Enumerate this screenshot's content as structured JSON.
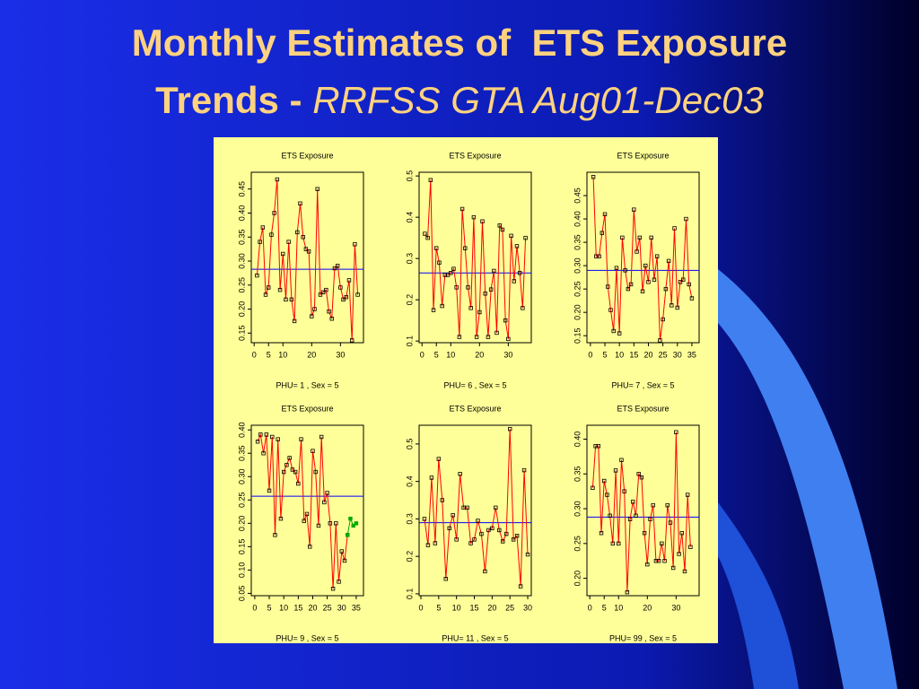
{
  "slide": {
    "title_line1": "Monthly Estimates of  ETS Exposure",
    "title_line2_bold": "Trends - ",
    "title_line2_italic": "RRFSS GTA Aug01-Dec03"
  },
  "chart_data": [
    {
      "type": "line",
      "title": "ETS Exposure",
      "x_label": "PHU= 1 , Sex = 5",
      "x": [
        1,
        2,
        3,
        4,
        5,
        6,
        7,
        8,
        9,
        10,
        11,
        12,
        13,
        14,
        15,
        16,
        17,
        18,
        19,
        20,
        21,
        22,
        23,
        24,
        25,
        26,
        27,
        28,
        29,
        30,
        31,
        32,
        33,
        34,
        35,
        36
      ],
      "series": [
        {
          "color": "#ff0000",
          "values": [
            0.27,
            0.34,
            0.37,
            0.23,
            0.245,
            0.355,
            0.4,
            0.47,
            0.24,
            0.315,
            0.22,
            0.34,
            0.22,
            0.175,
            0.36,
            0.42,
            0.35,
            0.325,
            0.32,
            0.185,
            0.2,
            0.45,
            0.23,
            0.235,
            0.24,
            0.195,
            0.18,
            0.285,
            0.29,
            0.245,
            0.22,
            0.225,
            0.26,
            0.135,
            0.335,
            0.23
          ]
        }
      ],
      "reference_line": {
        "value": 0.283,
        "color": "#0000ff"
      },
      "xlim": [
        -1,
        38
      ],
      "xticks": [
        0,
        5,
        10,
        20,
        30
      ],
      "ylim": [
        0.13,
        0.485
      ],
      "yticks": [
        0.15,
        {
          "value": 0.2,
          "label": "0.20"
        },
        0.25,
        {
          "value": 0.3,
          "label": "0.30"
        },
        0.35,
        {
          "value": 0.4,
          "label": "0.40"
        },
        0.45
      ]
    },
    {
      "type": "line",
      "title": "ETS Exposure",
      "x_label": "PHU= 6 , Sex = 5",
      "x": [
        1,
        2,
        3,
        4,
        5,
        6,
        7,
        8,
        9,
        10,
        11,
        12,
        13,
        14,
        15,
        16,
        17,
        18,
        19,
        20,
        21,
        22,
        23,
        24,
        25,
        26,
        27,
        28,
        29,
        30,
        31,
        32,
        33,
        34,
        35,
        36
      ],
      "series": [
        {
          "color": "#ff0000",
          "values": [
            0.36,
            0.35,
            0.49,
            0.175,
            0.325,
            0.29,
            0.185,
            0.26,
            0.26,
            0.265,
            0.275,
            0.23,
            0.11,
            0.42,
            0.325,
            0.23,
            0.18,
            0.4,
            0.11,
            0.17,
            0.39,
            0.215,
            0.11,
            0.225,
            0.27,
            0.12,
            0.38,
            0.37,
            0.15,
            0.105,
            0.355,
            0.245,
            0.33,
            0.265,
            0.18,
            0.35
          ]
        }
      ],
      "reference_line": {
        "value": 0.265,
        "color": "#0000ff"
      },
      "xlim": [
        -1,
        38
      ],
      "xticks": [
        0,
        5,
        10,
        20,
        30
      ],
      "ylim": [
        0.096,
        0.509
      ],
      "yticks": [
        0.1,
        0.2,
        0.3,
        0.4,
        0.5
      ]
    },
    {
      "type": "line",
      "title": "ETS Exposure",
      "x_label": "PHU= 7 , Sex = 5",
      "x": [
        1,
        2,
        3,
        4,
        5,
        6,
        7,
        8,
        9,
        10,
        11,
        12,
        13,
        14,
        15,
        16,
        17,
        18,
        19,
        20,
        21,
        22,
        23,
        24,
        25,
        26,
        27,
        28,
        29,
        30,
        31,
        32,
        33,
        34,
        35
      ],
      "series": [
        {
          "color": "#ff0000",
          "values": [
            0.49,
            0.32,
            0.32,
            0.37,
            0.41,
            0.255,
            0.205,
            0.16,
            0.295,
            0.155,
            0.36,
            0.29,
            0.25,
            0.26,
            0.42,
            0.33,
            0.36,
            0.245,
            0.3,
            0.265,
            0.36,
            0.27,
            0.32,
            0.14,
            0.185,
            0.25,
            0.31,
            0.215,
            0.38,
            0.21,
            0.265,
            0.27,
            0.4,
            0.26,
            0.23
          ]
        }
      ],
      "reference_line": {
        "value": 0.29,
        "color": "#0000ff"
      },
      "xlim": [
        -1.2,
        37.5
      ],
      "xticks": [
        0,
        5,
        10,
        15,
        20,
        25,
        30,
        35
      ],
      "ylim": [
        0.135,
        0.5
      ],
      "yticks": [
        0.15,
        {
          "value": 0.2,
          "label": "0.20"
        },
        0.25,
        {
          "value": 0.3,
          "label": "0.30"
        },
        0.35,
        {
          "value": 0.4,
          "label": "0.40"
        },
        0.45
      ]
    },
    {
      "type": "line",
      "title": "ETS Exposure",
      "x_label": "PHU= 9 , Sex = 5",
      "x": [
        1,
        2,
        3,
        4,
        5,
        6,
        7,
        8,
        9,
        10,
        11,
        12,
        13,
        14,
        15,
        16,
        17,
        18,
        19,
        20,
        21,
        22,
        23,
        24,
        25,
        26,
        27,
        28,
        29,
        30,
        31,
        32,
        33,
        34,
        35
      ],
      "series": [
        {
          "color": "#ff0000",
          "values": [
            0.375,
            0.39,
            0.35,
            0.39,
            0.27,
            0.385,
            0.175,
            0.38,
            0.21,
            0.31,
            0.325,
            0.34,
            0.315,
            0.31,
            0.285,
            0.38,
            0.205,
            0.22,
            0.15,
            0.355,
            0.31,
            0.195,
            0.385,
            0.245,
            0.265,
            0.2,
            0.06,
            0.2,
            0.075,
            0.14,
            0.12,
            0.175,
            null,
            null,
            null
          ]
        },
        {
          "color": "#00aa00",
          "values": [
            null,
            null,
            null,
            null,
            null,
            null,
            null,
            null,
            null,
            null,
            null,
            null,
            null,
            null,
            null,
            null,
            null,
            null,
            null,
            null,
            null,
            null,
            null,
            null,
            null,
            null,
            null,
            null,
            null,
            null,
            null,
            0.175,
            0.21,
            0.195,
            0.2
          ]
        }
      ],
      "reference_line": {
        "value": 0.258,
        "color": "#0000ff"
      },
      "xlim": [
        -1.2,
        37.5
      ],
      "xticks": [
        0,
        5,
        10,
        15,
        20,
        25,
        30,
        35
      ],
      "ylim": [
        0.045,
        0.41
      ],
      "yticks": [
        0.05,
        {
          "value": 0.1,
          "label": "0.10"
        },
        0.15,
        {
          "value": 0.2,
          "label": "0.20"
        },
        0.25,
        {
          "value": 0.3,
          "label": "0.30"
        },
        0.35,
        {
          "value": 0.4,
          "label": "0.40"
        }
      ]
    },
    {
      "type": "line",
      "title": "ETS Exposure",
      "x_label": "PHU= 11 , Sex = 5",
      "x": [
        1,
        2,
        3,
        4,
        5,
        6,
        7,
        8,
        9,
        10,
        11,
        12,
        13,
        14,
        15,
        16,
        17,
        18,
        19,
        20,
        21,
        22,
        23,
        24,
        25,
        26,
        27,
        28,
        29,
        30
      ],
      "series": [
        {
          "color": "#ff0000",
          "values": [
            0.3,
            0.23,
            0.41,
            0.235,
            0.46,
            0.35,
            0.14,
            0.275,
            0.31,
            0.245,
            0.42,
            0.33,
            0.33,
            0.235,
            0.245,
            0.295,
            0.26,
            0.16,
            0.27,
            0.275,
            0.33,
            0.27,
            0.24,
            0.26,
            0.54,
            0.245,
            0.255,
            0.12,
            0.43,
            0.205
          ]
        }
      ],
      "reference_line": {
        "value": 0.29,
        "color": "#0000ff"
      },
      "xlim": [
        -0.5,
        31
      ],
      "xticks": [
        0,
        5,
        10,
        15,
        20,
        25,
        30
      ],
      "ylim": [
        0.095,
        0.55
      ],
      "yticks": [
        0.1,
        0.2,
        0.3,
        0.4,
        0.5
      ]
    },
    {
      "type": "line",
      "title": "ETS Exposure",
      "x_label": "PHU= 99 , Sex = 5",
      "x": [
        1,
        2,
        3,
        4,
        5,
        6,
        7,
        8,
        9,
        10,
        11,
        12,
        13,
        14,
        15,
        16,
        17,
        18,
        19,
        20,
        21,
        22,
        23,
        24,
        25,
        26,
        27,
        28,
        29,
        30,
        31,
        32,
        33,
        34,
        35
      ],
      "series": [
        {
          "color": "#ff0000",
          "values": [
            0.33,
            0.39,
            0.39,
            0.265,
            0.34,
            0.32,
            0.29,
            0.25,
            0.355,
            0.25,
            0.37,
            0.325,
            0.18,
            0.285,
            0.31,
            0.29,
            0.35,
            0.345,
            0.265,
            0.22,
            0.285,
            0.305,
            0.225,
            0.225,
            0.25,
            0.225,
            0.305,
            0.28,
            0.215,
            0.41,
            0.235,
            0.265,
            0.21,
            0.32,
            0.245
          ]
        }
      ],
      "reference_line": {
        "value": 0.288,
        "color": "#0000ff"
      },
      "xlim": [
        -1,
        38
      ],
      "xticks": [
        0,
        5,
        10,
        20,
        30
      ],
      "ylim": [
        0.175,
        0.42
      ],
      "yticks": [
        {
          "value": 0.2,
          "label": "0.20"
        },
        0.25,
        {
          "value": 0.3,
          "label": "0.30"
        },
        0.35,
        {
          "value": 0.4,
          "label": "0.40"
        }
      ]
    }
  ]
}
